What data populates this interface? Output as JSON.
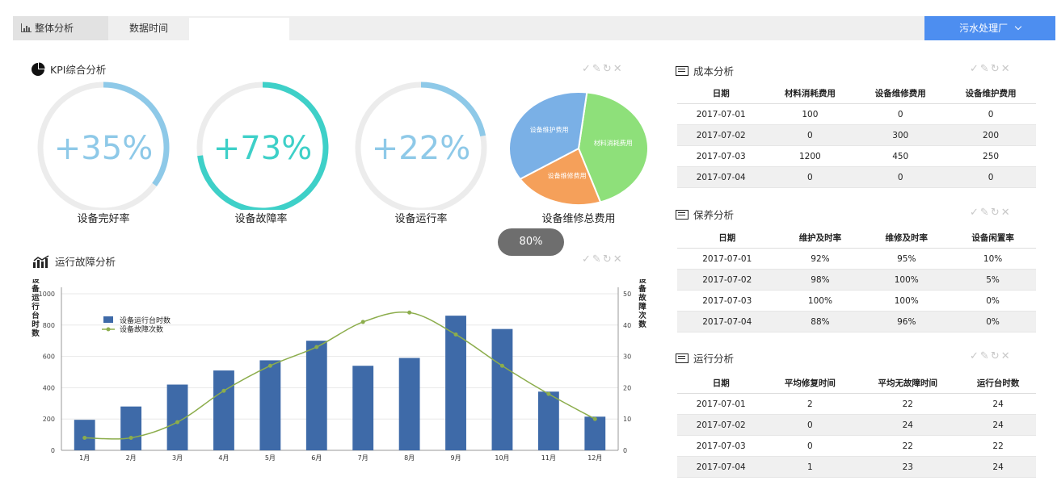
{
  "topbar": {
    "tab_overall": "整体分析",
    "tab_time": "数据时间",
    "time_value": "",
    "plant": "污水处理厂"
  },
  "kpi": {
    "title": "KPI综合分析",
    "gauges": [
      {
        "value": "+35%",
        "label": "设备完好率",
        "fraction": 0.35,
        "color": "#8ec9e8"
      },
      {
        "value": "+73%",
        "label": "设备故障率",
        "fraction": 0.73,
        "color": "#3ed0c8"
      },
      {
        "value": "+22%",
        "label": "设备运行率",
        "fraction": 0.22,
        "color": "#8ec9e8"
      }
    ],
    "pie_label": "设备维修总费用",
    "badge": "80%"
  },
  "chart_title": "运行故障分析",
  "chart_data": {
    "type": "bar",
    "categories": [
      "1月",
      "2月",
      "3月",
      "4月",
      "5月",
      "6月",
      "7月",
      "8月",
      "9月",
      "10月",
      "11月",
      "12月"
    ],
    "series": [
      {
        "name": "设备运行台时数",
        "type": "bar",
        "axis": "left",
        "color": "#3e6aa8",
        "values": [
          195,
          280,
          420,
          510,
          575,
          700,
          540,
          590,
          860,
          775,
          375,
          215
        ]
      },
      {
        "name": "设备故障次数",
        "type": "line",
        "axis": "right",
        "color": "#8cad4c",
        "values": [
          4,
          4,
          9,
          19,
          27,
          33,
          41,
          44,
          37,
          27,
          18,
          10
        ]
      }
    ],
    "ylabel": "设备运行台时数",
    "ylabel_right": "设备故障次数",
    "ylim": [
      0,
      1000
    ],
    "ylim_right": [
      0,
      50
    ],
    "yticks": [
      "0",
      "200",
      "400",
      "600",
      "800",
      "1000"
    ],
    "yticks_right": [
      "0",
      "10",
      "20",
      "30",
      "40",
      "50"
    ],
    "legend_position": "top-left"
  },
  "pie_data": {
    "type": "pie",
    "slices": [
      {
        "name": "材料消耗费用",
        "value": 43,
        "color": "#8ee07a"
      },
      {
        "name": "设备维修费用",
        "value": 21,
        "color": "#f5a05a"
      },
      {
        "name": "设备维护费用",
        "value": 36,
        "color": "#7ab0e6"
      }
    ]
  },
  "cost": {
    "title": "成本分析",
    "headers": [
      "日期",
      "材料消耗费用",
      "设备维修费用",
      "设备维护费用"
    ],
    "rows": [
      [
        "2017-07-01",
        "100",
        "0",
        "0"
      ],
      [
        "2017-07-02",
        "0",
        "300",
        "200"
      ],
      [
        "2017-07-03",
        "1200",
        "450",
        "250"
      ],
      [
        "2017-07-04",
        "0",
        "0",
        "0"
      ]
    ]
  },
  "maintain": {
    "title": "保养分析",
    "headers": [
      "日期",
      "维护及时率",
      "维修及时率",
      "设备闲置率"
    ],
    "rows": [
      [
        "2017-07-01",
        "92%",
        "95%",
        "10%"
      ],
      [
        "2017-07-02",
        "98%",
        "100%",
        "5%"
      ],
      [
        "2017-07-03",
        "100%",
        "100%",
        "0%"
      ],
      [
        "2017-07-04",
        "88%",
        "96%",
        "0%"
      ]
    ]
  },
  "operation": {
    "title": "运行分析",
    "headers": [
      "日期",
      "平均修复时间",
      "平均无故障时间",
      "运行台时数"
    ],
    "rows": [
      [
        "2017-07-01",
        "2",
        "22",
        "24"
      ],
      [
        "2017-07-02",
        "0",
        "24",
        "24"
      ],
      [
        "2017-07-03",
        "0",
        "22",
        "22"
      ],
      [
        "2017-07-04",
        "1",
        "23",
        "24"
      ]
    ]
  },
  "toolbar_icons": [
    "check-icon",
    "edit-icon",
    "refresh-icon",
    "close-icon"
  ]
}
